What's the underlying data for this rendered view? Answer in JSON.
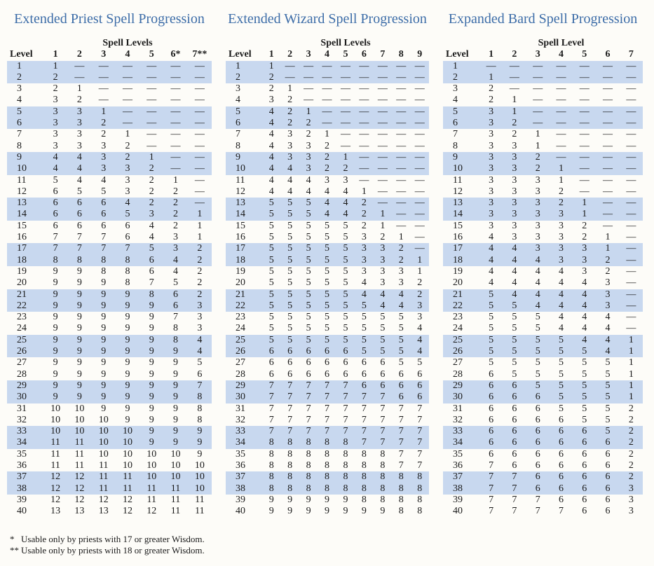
{
  "tables": [
    {
      "title": "Extended Priest Spell Progression",
      "group_header": "Spell Levels",
      "columns": [
        "Level",
        "1",
        "2",
        "3",
        "4",
        "5",
        "6*",
        "7**"
      ],
      "rows": [
        [
          1,
          1,
          "—",
          "—",
          "—",
          "—",
          "—",
          "—"
        ],
        [
          2,
          2,
          "—",
          "—",
          "—",
          "—",
          "—",
          "—"
        ],
        [
          3,
          2,
          1,
          "—",
          "—",
          "—",
          "—",
          "—"
        ],
        [
          4,
          3,
          2,
          "—",
          "—",
          "—",
          "—",
          "—"
        ],
        [
          5,
          3,
          3,
          1,
          "—",
          "—",
          "—",
          "—"
        ],
        [
          6,
          3,
          3,
          2,
          "—",
          "—",
          "—",
          "—"
        ],
        [
          7,
          3,
          3,
          2,
          1,
          "—",
          "—",
          "—"
        ],
        [
          8,
          3,
          3,
          3,
          2,
          "—",
          "—",
          "—"
        ],
        [
          9,
          4,
          4,
          3,
          2,
          1,
          "—",
          "—"
        ],
        [
          10,
          4,
          4,
          3,
          3,
          2,
          "—",
          "—"
        ],
        [
          11,
          5,
          4,
          4,
          3,
          2,
          1,
          "—"
        ],
        [
          12,
          6,
          5,
          5,
          3,
          2,
          2,
          "—"
        ],
        [
          13,
          6,
          6,
          6,
          4,
          2,
          2,
          "—"
        ],
        [
          14,
          6,
          6,
          6,
          5,
          3,
          2,
          1
        ],
        [
          15,
          6,
          6,
          6,
          6,
          4,
          2,
          1
        ],
        [
          16,
          7,
          7,
          7,
          6,
          4,
          3,
          1
        ],
        [
          17,
          7,
          7,
          7,
          7,
          5,
          3,
          2
        ],
        [
          18,
          8,
          8,
          8,
          8,
          6,
          4,
          2
        ],
        [
          19,
          9,
          9,
          8,
          8,
          6,
          4,
          2
        ],
        [
          20,
          9,
          9,
          9,
          8,
          7,
          5,
          2
        ],
        [
          21,
          9,
          9,
          9,
          9,
          8,
          6,
          2
        ],
        [
          22,
          9,
          9,
          9,
          9,
          9,
          6,
          3
        ],
        [
          23,
          9,
          9,
          9,
          9,
          9,
          7,
          3
        ],
        [
          24,
          9,
          9,
          9,
          9,
          9,
          8,
          3
        ],
        [
          25,
          9,
          9,
          9,
          9,
          9,
          8,
          4
        ],
        [
          26,
          9,
          9,
          9,
          9,
          9,
          9,
          4
        ],
        [
          27,
          9,
          9,
          9,
          9,
          9,
          9,
          5
        ],
        [
          28,
          9,
          9,
          9,
          9,
          9,
          9,
          6
        ],
        [
          29,
          9,
          9,
          9,
          9,
          9,
          9,
          7
        ],
        [
          30,
          9,
          9,
          9,
          9,
          9,
          9,
          8
        ],
        [
          31,
          10,
          10,
          9,
          9,
          9,
          9,
          8
        ],
        [
          32,
          10,
          10,
          10,
          9,
          9,
          9,
          8
        ],
        [
          33,
          10,
          10,
          10,
          10,
          9,
          9,
          9
        ],
        [
          34,
          11,
          11,
          10,
          10,
          9,
          9,
          9
        ],
        [
          35,
          11,
          11,
          10,
          10,
          10,
          10,
          9
        ],
        [
          36,
          11,
          11,
          11,
          10,
          10,
          10,
          10
        ],
        [
          37,
          12,
          12,
          11,
          11,
          10,
          10,
          10
        ],
        [
          38,
          12,
          12,
          11,
          11,
          11,
          11,
          10
        ],
        [
          39,
          12,
          12,
          12,
          12,
          11,
          11,
          11
        ],
        [
          40,
          13,
          13,
          13,
          12,
          12,
          11,
          11
        ]
      ]
    },
    {
      "title": "Extended Wizard Spell Progression",
      "group_header": "Spell Levels",
      "columns": [
        "Level",
        "1",
        "2",
        "3",
        "4",
        "5",
        "6",
        "7",
        "8",
        "9"
      ],
      "rows": [
        [
          1,
          1,
          "—",
          "—",
          "—",
          "—",
          "—",
          "—",
          "—",
          "—"
        ],
        [
          2,
          2,
          "—",
          "—",
          "—",
          "—",
          "—",
          "—",
          "—",
          "—"
        ],
        [
          3,
          2,
          1,
          "—",
          "—",
          "—",
          "—",
          "—",
          "—",
          "—"
        ],
        [
          4,
          3,
          2,
          "—",
          "—",
          "—",
          "—",
          "—",
          "—",
          "—"
        ],
        [
          5,
          4,
          2,
          1,
          "—",
          "—",
          "—",
          "—",
          "—",
          "—"
        ],
        [
          6,
          4,
          2,
          2,
          "—",
          "—",
          "—",
          "—",
          "—",
          "—"
        ],
        [
          7,
          4,
          3,
          2,
          1,
          "—",
          "—",
          "—",
          "—",
          "—"
        ],
        [
          8,
          4,
          3,
          3,
          2,
          "—",
          "—",
          "—",
          "—",
          "—"
        ],
        [
          9,
          4,
          3,
          3,
          2,
          1,
          "—",
          "—",
          "—",
          "—"
        ],
        [
          10,
          4,
          4,
          3,
          2,
          2,
          "—",
          "—",
          "—",
          "—"
        ],
        [
          11,
          4,
          4,
          4,
          3,
          3,
          "—",
          "—",
          "—",
          "—"
        ],
        [
          12,
          4,
          4,
          4,
          4,
          4,
          1,
          "—",
          "—",
          "—"
        ],
        [
          13,
          5,
          5,
          5,
          4,
          4,
          2,
          "—",
          "—",
          "—"
        ],
        [
          14,
          5,
          5,
          5,
          4,
          4,
          2,
          1,
          "—",
          "—"
        ],
        [
          15,
          5,
          5,
          5,
          5,
          5,
          2,
          1,
          "—",
          "—"
        ],
        [
          16,
          5,
          5,
          5,
          5,
          5,
          3,
          2,
          1,
          "—"
        ],
        [
          17,
          5,
          5,
          5,
          5,
          5,
          3,
          3,
          2,
          "—"
        ],
        [
          18,
          5,
          5,
          5,
          5,
          5,
          3,
          3,
          2,
          1
        ],
        [
          19,
          5,
          5,
          5,
          5,
          5,
          3,
          3,
          3,
          1
        ],
        [
          20,
          5,
          5,
          5,
          5,
          5,
          4,
          3,
          3,
          2
        ],
        [
          21,
          5,
          5,
          5,
          5,
          5,
          4,
          4,
          4,
          2
        ],
        [
          22,
          5,
          5,
          5,
          5,
          5,
          5,
          4,
          4,
          3
        ],
        [
          23,
          5,
          5,
          5,
          5,
          5,
          5,
          5,
          5,
          3
        ],
        [
          24,
          5,
          5,
          5,
          5,
          5,
          5,
          5,
          5,
          4
        ],
        [
          25,
          5,
          5,
          5,
          5,
          5,
          5,
          5,
          5,
          4
        ],
        [
          26,
          6,
          6,
          6,
          6,
          6,
          5,
          5,
          5,
          4
        ],
        [
          27,
          6,
          6,
          6,
          6,
          6,
          6,
          6,
          5,
          5
        ],
        [
          28,
          6,
          6,
          6,
          6,
          6,
          6,
          6,
          6,
          6
        ],
        [
          29,
          7,
          7,
          7,
          7,
          7,
          6,
          6,
          6,
          6
        ],
        [
          30,
          7,
          7,
          7,
          7,
          7,
          7,
          7,
          6,
          6
        ],
        [
          31,
          7,
          7,
          7,
          7,
          7,
          7,
          7,
          7,
          7
        ],
        [
          32,
          7,
          7,
          7,
          7,
          7,
          7,
          7,
          7,
          7
        ],
        [
          33,
          7,
          7,
          7,
          7,
          7,
          7,
          7,
          7,
          7
        ],
        [
          34,
          8,
          8,
          8,
          8,
          8,
          7,
          7,
          7,
          7
        ],
        [
          35,
          8,
          8,
          8,
          8,
          8,
          8,
          8,
          7,
          7
        ],
        [
          36,
          8,
          8,
          8,
          8,
          8,
          8,
          8,
          7,
          7
        ],
        [
          37,
          8,
          8,
          8,
          8,
          8,
          8,
          8,
          8,
          8
        ],
        [
          38,
          8,
          8,
          8,
          8,
          8,
          8,
          8,
          8,
          8
        ],
        [
          39,
          9,
          9,
          9,
          9,
          9,
          8,
          8,
          8,
          8
        ],
        [
          40,
          9,
          9,
          9,
          9,
          9,
          9,
          9,
          8,
          8
        ]
      ]
    },
    {
      "title": "Expanded Bard Spell Progression",
      "group_header": "Spell Level",
      "columns": [
        "Level",
        "1",
        "2",
        "3",
        "4",
        "5",
        "6",
        "7"
      ],
      "rows": [
        [
          1,
          "—",
          "—",
          "—",
          "—",
          "—",
          "—",
          "—"
        ],
        [
          2,
          1,
          "—",
          "—",
          "—",
          "—",
          "—",
          "—"
        ],
        [
          3,
          2,
          "—",
          "—",
          "—",
          "—",
          "—",
          "—"
        ],
        [
          4,
          2,
          1,
          "—",
          "—",
          "—",
          "—",
          "—"
        ],
        [
          5,
          3,
          1,
          "—",
          "—",
          "—",
          "—",
          "—"
        ],
        [
          6,
          3,
          2,
          "—",
          "—",
          "—",
          "—",
          "—"
        ],
        [
          7,
          3,
          2,
          1,
          "—",
          "—",
          "—",
          "—"
        ],
        [
          8,
          3,
          3,
          1,
          "—",
          "—",
          "—",
          "—"
        ],
        [
          9,
          3,
          3,
          2,
          "—",
          "—",
          "—",
          "—"
        ],
        [
          10,
          3,
          3,
          2,
          1,
          "—",
          "—",
          "—"
        ],
        [
          11,
          3,
          3,
          3,
          1,
          "—",
          "—",
          "—"
        ],
        [
          12,
          3,
          3,
          3,
          2,
          "—",
          "—",
          "—"
        ],
        [
          13,
          3,
          3,
          3,
          2,
          1,
          "—",
          "—"
        ],
        [
          14,
          3,
          3,
          3,
          3,
          1,
          "—",
          "—"
        ],
        [
          15,
          3,
          3,
          3,
          3,
          2,
          "—",
          "—"
        ],
        [
          16,
          4,
          3,
          3,
          3,
          2,
          1,
          "—"
        ],
        [
          17,
          4,
          4,
          3,
          3,
          3,
          1,
          "—"
        ],
        [
          18,
          4,
          4,
          4,
          3,
          3,
          2,
          "—"
        ],
        [
          19,
          4,
          4,
          4,
          4,
          3,
          2,
          "—"
        ],
        [
          20,
          4,
          4,
          4,
          4,
          4,
          3,
          "—"
        ],
        [
          21,
          5,
          4,
          4,
          4,
          4,
          3,
          "—"
        ],
        [
          22,
          5,
          5,
          4,
          4,
          4,
          3,
          "—"
        ],
        [
          23,
          5,
          5,
          5,
          4,
          4,
          4,
          "—"
        ],
        [
          24,
          5,
          5,
          5,
          4,
          4,
          4,
          "—"
        ],
        [
          25,
          5,
          5,
          5,
          5,
          4,
          4,
          1
        ],
        [
          26,
          5,
          5,
          5,
          5,
          5,
          4,
          1
        ],
        [
          27,
          5,
          5,
          5,
          5,
          5,
          5,
          1
        ],
        [
          28,
          6,
          5,
          5,
          5,
          5,
          5,
          1
        ],
        [
          29,
          6,
          6,
          5,
          5,
          5,
          5,
          1
        ],
        [
          30,
          6,
          6,
          6,
          5,
          5,
          5,
          1
        ],
        [
          31,
          6,
          6,
          6,
          5,
          5,
          5,
          2
        ],
        [
          32,
          6,
          6,
          6,
          6,
          5,
          5,
          2
        ],
        [
          33,
          6,
          6,
          6,
          6,
          6,
          5,
          2
        ],
        [
          34,
          6,
          6,
          6,
          6,
          6,
          6,
          2
        ],
        [
          35,
          6,
          6,
          6,
          6,
          6,
          6,
          2
        ],
        [
          36,
          7,
          6,
          6,
          6,
          6,
          6,
          2
        ],
        [
          37,
          7,
          7,
          6,
          6,
          6,
          6,
          2
        ],
        [
          38,
          7,
          7,
          6,
          6,
          6,
          6,
          3
        ],
        [
          39,
          7,
          7,
          7,
          6,
          6,
          6,
          3
        ],
        [
          40,
          7,
          7,
          7,
          7,
          6,
          6,
          3
        ]
      ]
    }
  ],
  "footnotes": [
    {
      "marker": "*",
      "text": "Usable only by priests with 17 or greater Wisdom."
    },
    {
      "marker": "**",
      "text": "Usable only by priests with 18 or greater Wisdom."
    }
  ]
}
